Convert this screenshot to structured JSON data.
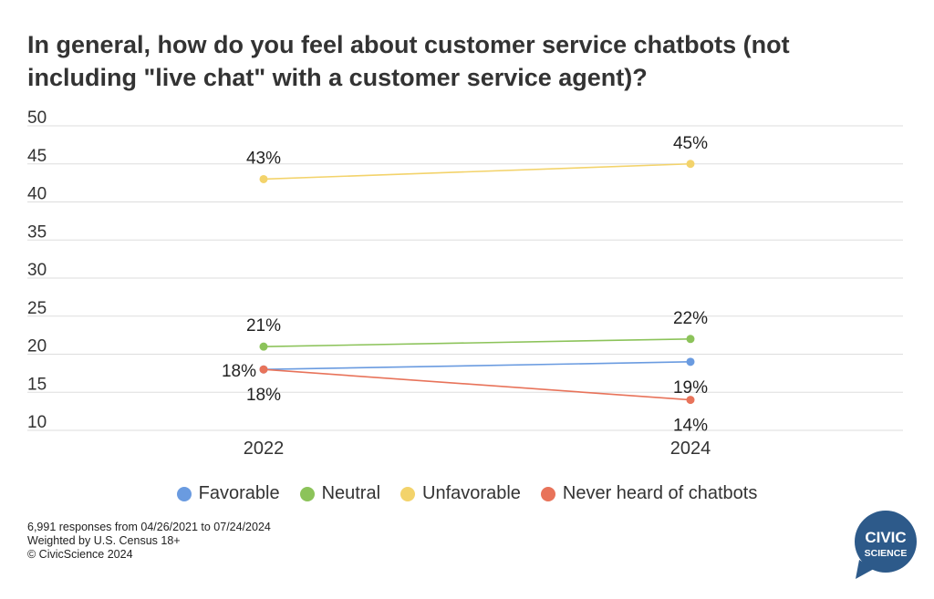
{
  "title": "In general, how do you feel about customer service chatbots (not including \"live chat\" with a customer service agent)?",
  "chart_data": {
    "type": "line",
    "x": [
      "2022",
      "2024"
    ],
    "ylim": [
      10,
      50
    ],
    "yticks": [
      10,
      15,
      20,
      25,
      30,
      35,
      40,
      45,
      50
    ],
    "grid": true,
    "legend_position": "bottom",
    "series": [
      {
        "name": "Favorable",
        "color": "#6a9be0",
        "values": [
          18,
          19
        ],
        "labels": [
          "18%",
          "19%"
        ]
      },
      {
        "name": "Neutral",
        "color": "#8cc35a",
        "values": [
          21,
          22
        ],
        "labels": [
          "21%",
          "22%"
        ]
      },
      {
        "name": "Unfavorable",
        "color": "#f3d36b",
        "values": [
          43,
          45
        ],
        "labels": [
          "43%",
          "45%"
        ]
      },
      {
        "name": "Never heard of chatbots",
        "color": "#e8735a",
        "values": [
          18,
          14
        ],
        "labels": [
          "18%",
          "14%"
        ]
      }
    ]
  },
  "footer": {
    "line1": "6,991 responses from 04/26/2021 to 07/24/2024",
    "line2": "Weighted by U.S. Census 18+",
    "line3": "© CivicScience 2024"
  },
  "logo": {
    "line1": "CIVIC",
    "line2": "SCIENCE",
    "color": "#2d5a8a"
  }
}
